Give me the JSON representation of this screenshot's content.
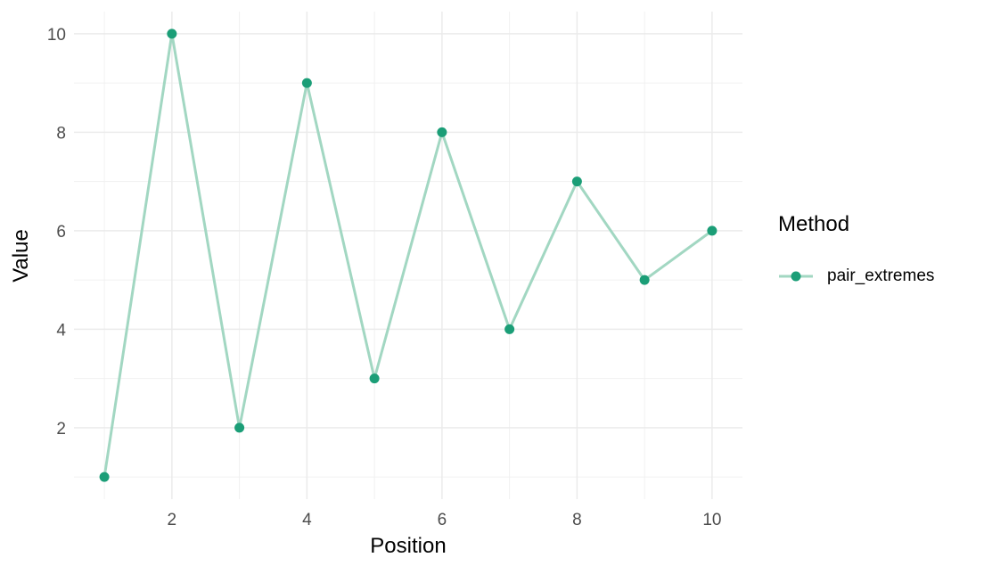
{
  "chart_data": {
    "type": "line",
    "title": "",
    "xlabel": "Position",
    "ylabel": "Value",
    "series": [
      {
        "name": "pair_extremes",
        "x": [
          1,
          2,
          3,
          4,
          5,
          6,
          7,
          8,
          9,
          10
        ],
        "y": [
          1,
          10,
          2,
          9,
          3,
          8,
          4,
          7,
          5,
          6
        ]
      }
    ],
    "xlim": [
      0.55,
      10.45
    ],
    "ylim": [
      0.55,
      10.45
    ],
    "x_ticks": [
      2,
      4,
      6,
      8,
      10
    ],
    "y_ticks": [
      2,
      4,
      6,
      8,
      10
    ],
    "x_minor_ticks": [
      1,
      3,
      5,
      7,
      9
    ],
    "y_minor_ticks": [
      1,
      3,
      5,
      7,
      9
    ],
    "grid": true,
    "legend_position": "right"
  },
  "legend": {
    "title": "Method",
    "items": [
      {
        "label": "pair_extremes"
      }
    ]
  },
  "style": {
    "background": "#FFFFFF",
    "grid_major_color": "#EBEBEB",
    "grid_minor_color": "#F0F0F0",
    "tick_label_color": "#4D4D4D",
    "title_color": "#000000",
    "line_color": "#A2D7C2",
    "point_color": "#1B9E77"
  }
}
